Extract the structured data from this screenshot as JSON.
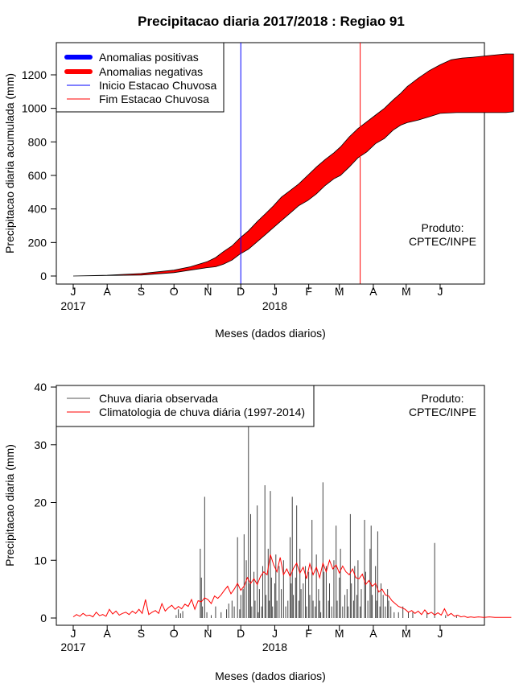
{
  "title": "Precipitacao diaria 2017/2018 : Regiao 91",
  "chart_data": [
    {
      "type": "area",
      "ylabel": "Precipitacao diaria acumulada (mm)",
      "xlabel": "Meses (dados diarios)",
      "ylim": [
        0,
        1350
      ],
      "yticks": [
        "0",
        "200",
        "400",
        "600",
        "800",
        "1000",
        "1200"
      ],
      "month_ticks": [
        "J",
        "A",
        "S",
        "O",
        "N",
        "D",
        "J",
        "F",
        "M",
        "A",
        "M",
        "J"
      ],
      "year_labels": [
        "2017",
        "2018"
      ],
      "annotation": [
        "Produto:",
        "CPTEC/INPE"
      ],
      "legend_position": "top-left",
      "legend": [
        {
          "label": "Anomalias positivas",
          "color": "#0000ff",
          "style": "thick"
        },
        {
          "label": "Anomalias negativas",
          "color": "#ff0000",
          "style": "thick"
        },
        {
          "label": "Inicio Estacao Chuvosa",
          "color": "#0000ff",
          "style": "thin"
        },
        {
          "label": "Fim Estacao Chuvosa",
          "color": "#ff0000",
          "style": "thin"
        }
      ],
      "observed_cumulative": [
        [
          0,
          0
        ],
        [
          31,
          3
        ],
        [
          62,
          6
        ],
        [
          92,
          20
        ],
        [
          107,
          35
        ],
        [
          122,
          50
        ],
        [
          130,
          55
        ],
        [
          137,
          70
        ],
        [
          145,
          95
        ],
        [
          152,
          130
        ],
        [
          160,
          160
        ],
        [
          168,
          205
        ],
        [
          176,
          250
        ],
        [
          183,
          290
        ],
        [
          190,
          330
        ],
        [
          198,
          375
        ],
        [
          206,
          420
        ],
        [
          214,
          450
        ],
        [
          222,
          490
        ],
        [
          230,
          540
        ],
        [
          238,
          580
        ],
        [
          244,
          600
        ],
        [
          252,
          650
        ],
        [
          260,
          705
        ],
        [
          268,
          740
        ],
        [
          276,
          790
        ],
        [
          284,
          820
        ],
        [
          292,
          870
        ],
        [
          299,
          900
        ],
        [
          305,
          915
        ],
        [
          315,
          930
        ],
        [
          325,
          950
        ],
        [
          335,
          970
        ],
        [
          350,
          975
        ],
        [
          365,
          975
        ],
        [
          395,
          975
        ],
        [
          402,
          980
        ]
      ],
      "climatology_cumulative": [
        [
          0,
          0
        ],
        [
          31,
          5
        ],
        [
          62,
          15
        ],
        [
          92,
          35
        ],
        [
          107,
          55
        ],
        [
          122,
          85
        ],
        [
          130,
          110
        ],
        [
          137,
          145
        ],
        [
          145,
          180
        ],
        [
          152,
          225
        ],
        [
          160,
          270
        ],
        [
          168,
          325
        ],
        [
          176,
          375
        ],
        [
          183,
          420
        ],
        [
          190,
          470
        ],
        [
          198,
          510
        ],
        [
          206,
          550
        ],
        [
          214,
          600
        ],
        [
          222,
          650
        ],
        [
          230,
          695
        ],
        [
          238,
          735
        ],
        [
          244,
          770
        ],
        [
          252,
          830
        ],
        [
          260,
          880
        ],
        [
          268,
          920
        ],
        [
          276,
          960
        ],
        [
          284,
          1000
        ],
        [
          292,
          1050
        ],
        [
          299,
          1090
        ],
        [
          305,
          1130
        ],
        [
          315,
          1180
        ],
        [
          325,
          1225
        ],
        [
          335,
          1260
        ],
        [
          345,
          1290
        ],
        [
          355,
          1300
        ],
        [
          365,
          1305
        ],
        [
          380,
          1315
        ],
        [
          395,
          1325
        ],
        [
          402,
          1325
        ]
      ],
      "rainy_season_start_day": 153,
      "rainy_season_end_day": 262
    },
    {
      "type": "bar",
      "ylabel": "Precipitacao diaria (mm)",
      "xlabel": "Meses (dados diarios)",
      "ylim": [
        0,
        40
      ],
      "yticks": [
        "0",
        "10",
        "20",
        "30",
        "40"
      ],
      "month_ticks": [
        "J",
        "A",
        "S",
        "O",
        "N",
        "D",
        "J",
        "F",
        "M",
        "A",
        "M",
        "J"
      ],
      "year_labels": [
        "2017",
        "2018"
      ],
      "annotation": [
        "Produto:",
        "CPTEC/INPE"
      ],
      "legend_position": "top-left",
      "legend": [
        {
          "label": "Chuva diaria observada",
          "color": "#555555",
          "style": "thin"
        },
        {
          "label": "Climatologia de chuva diária (1997-2014)",
          "color": "#ff0000",
          "style": "thin"
        }
      ],
      "observed_spikes": [
        [
          94,
          0.5
        ],
        [
          96,
          1.5
        ],
        [
          98,
          0.8
        ],
        [
          100,
          1.2
        ],
        [
          116,
          12
        ],
        [
          117,
          7
        ],
        [
          118,
          2
        ],
        [
          120,
          21
        ],
        [
          122,
          1
        ],
        [
          126,
          0.5
        ],
        [
          130,
          2
        ],
        [
          135,
          1
        ],
        [
          140,
          1.5
        ],
        [
          142,
          2.5
        ],
        [
          145,
          3
        ],
        [
          147,
          2
        ],
        [
          150,
          14
        ],
        [
          152,
          1.5
        ],
        [
          153,
          4
        ],
        [
          155,
          5
        ],
        [
          156,
          14.5
        ],
        [
          158,
          10
        ],
        [
          160,
          34
        ],
        [
          161,
          6
        ],
        [
          162,
          18
        ],
        [
          163,
          2
        ],
        [
          165,
          8
        ],
        [
          166,
          3
        ],
        [
          168,
          19.5
        ],
        [
          169,
          1
        ],
        [
          170,
          5
        ],
        [
          172,
          2
        ],
        [
          173,
          9
        ],
        [
          175,
          23
        ],
        [
          176,
          4
        ],
        [
          178,
          12
        ],
        [
          179,
          3
        ],
        [
          180,
          22
        ],
        [
          181,
          7
        ],
        [
          182,
          2
        ],
        [
          184,
          6
        ],
        [
          185,
          11
        ],
        [
          186,
          3
        ],
        [
          188,
          9
        ],
        [
          190,
          5
        ],
        [
          192,
          10
        ],
        [
          194,
          2
        ],
        [
          196,
          3
        ],
        [
          198,
          14
        ],
        [
          199,
          6
        ],
        [
          200,
          21
        ],
        [
          201,
          4
        ],
        [
          203,
          7
        ],
        [
          204,
          19.5
        ],
        [
          206,
          3
        ],
        [
          207,
          12
        ],
        [
          208,
          5
        ],
        [
          210,
          6
        ],
        [
          212,
          9
        ],
        [
          213,
          2
        ],
        [
          215,
          8
        ],
        [
          216,
          4
        ],
        [
          218,
          17
        ],
        [
          219,
          3
        ],
        [
          221,
          2
        ],
        [
          222,
          11
        ],
        [
          224,
          5
        ],
        [
          225,
          3
        ],
        [
          226,
          1
        ],
        [
          228,
          23.5
        ],
        [
          229,
          8
        ],
        [
          231,
          9
        ],
        [
          233,
          3
        ],
        [
          234,
          6
        ],
        [
          236,
          2
        ],
        [
          238,
          10
        ],
        [
          240,
          16
        ],
        [
          241,
          3
        ],
        [
          243,
          7
        ],
        [
          244,
          12
        ],
        [
          246,
          2
        ],
        [
          248,
          4
        ],
        [
          250,
          5
        ],
        [
          251,
          2
        ],
        [
          253,
          18
        ],
        [
          254,
          6
        ],
        [
          256,
          3
        ],
        [
          257,
          9
        ],
        [
          259,
          4
        ],
        [
          260,
          10
        ],
        [
          262,
          2
        ],
        [
          263,
          5
        ],
        [
          266,
          17
        ],
        [
          267,
          8
        ],
        [
          269,
          3
        ],
        [
          271,
          12
        ],
        [
          272,
          16
        ],
        [
          273,
          4
        ],
        [
          276,
          9
        ],
        [
          277,
          3
        ],
        [
          278,
          15
        ],
        [
          280,
          2
        ],
        [
          281,
          6
        ],
        [
          283,
          4
        ],
        [
          285,
          2
        ],
        [
          287,
          5
        ],
        [
          288,
          3
        ],
        [
          290,
          2
        ],
        [
          293,
          1
        ],
        [
          297,
          1
        ],
        [
          301,
          2
        ],
        [
          306,
          1
        ],
        [
          310,
          1
        ],
        [
          323,
          1
        ],
        [
          330,
          13
        ],
        [
          340,
          0.5
        ],
        [
          350,
          0.5
        ]
      ],
      "climatology_daily": [
        [
          0,
          0.2
        ],
        [
          3,
          0.6
        ],
        [
          6,
          0.3
        ],
        [
          9,
          0.8
        ],
        [
          12,
          0.4
        ],
        [
          15,
          0.5
        ],
        [
          18,
          0.2
        ],
        [
          21,
          1.0
        ],
        [
          24,
          0.4
        ],
        [
          27,
          0.6
        ],
        [
          30,
          0.3
        ],
        [
          33,
          1.5
        ],
        [
          36,
          0.7
        ],
        [
          39,
          1.2
        ],
        [
          42,
          0.5
        ],
        [
          45,
          0.8
        ],
        [
          48,
          1.0
        ],
        [
          51,
          0.6
        ],
        [
          54,
          1.2
        ],
        [
          57,
          0.8
        ],
        [
          60,
          1.5
        ],
        [
          63,
          0.8
        ],
        [
          66,
          3.2
        ],
        [
          69,
          0.6
        ],
        [
          72,
          1.0
        ],
        [
          75,
          1.3
        ],
        [
          78,
          0.8
        ],
        [
          81,
          2.5
        ],
        [
          84,
          1.2
        ],
        [
          87,
          1.8
        ],
        [
          90,
          2.2
        ],
        [
          93,
          1.5
        ],
        [
          96,
          2.0
        ],
        [
          99,
          1.6
        ],
        [
          102,
          2.4
        ],
        [
          105,
          2.0
        ],
        [
          108,
          3.2
        ],
        [
          111,
          1.5
        ],
        [
          114,
          3.0
        ],
        [
          117,
          2.8
        ],
        [
          120,
          3.5
        ],
        [
          123,
          3.2
        ],
        [
          126,
          2.5
        ],
        [
          129,
          3.8
        ],
        [
          132,
          3.4
        ],
        [
          135,
          4.0
        ],
        [
          138,
          4.8
        ],
        [
          141,
          5.5
        ],
        [
          144,
          4.2
        ],
        [
          147,
          5.0
        ],
        [
          150,
          6.0
        ],
        [
          153,
          4.8
        ],
        [
          156,
          5.5
        ],
        [
          159,
          7.0
        ],
        [
          162,
          6.0
        ],
        [
          165,
          6.8
        ],
        [
          168,
          5.8
        ],
        [
          171,
          7.2
        ],
        [
          174,
          8.0
        ],
        [
          177,
          7.5
        ],
        [
          180,
          11.0
        ],
        [
          183,
          9.2
        ],
        [
          186,
          8.0
        ],
        [
          189,
          10.5
        ],
        [
          192,
          7.5
        ],
        [
          195,
          8.5
        ],
        [
          198,
          7.2
        ],
        [
          201,
          8.6
        ],
        [
          204,
          9.5
        ],
        [
          207,
          7.8
        ],
        [
          210,
          8.8
        ],
        [
          213,
          6.8
        ],
        [
          216,
          9.4
        ],
        [
          219,
          7.5
        ],
        [
          222,
          8.8
        ],
        [
          225,
          7.0
        ],
        [
          228,
          9.5
        ],
        [
          231,
          8.0
        ],
        [
          234,
          10.0
        ],
        [
          237,
          8.5
        ],
        [
          240,
          9.2
        ],
        [
          243,
          7.8
        ],
        [
          246,
          9.0
        ],
        [
          249,
          8.0
        ],
        [
          252,
          7.5
        ],
        [
          255,
          8.5
        ],
        [
          258,
          7.0
        ],
        [
          261,
          6.8
        ],
        [
          264,
          7.6
        ],
        [
          267,
          5.8
        ],
        [
          270,
          6.5
        ],
        [
          273,
          5.5
        ],
        [
          276,
          6.0
        ],
        [
          279,
          4.5
        ],
        [
          282,
          5.0
        ],
        [
          285,
          4.0
        ],
        [
          288,
          3.8
        ],
        [
          291,
          3.0
        ],
        [
          294,
          2.5
        ],
        [
          297,
          2.0
        ],
        [
          300,
          1.8
        ],
        [
          303,
          1.5
        ],
        [
          306,
          1.0
        ],
        [
          309,
          1.3
        ],
        [
          312,
          0.8
        ],
        [
          315,
          1.2
        ],
        [
          318,
          0.6
        ],
        [
          321,
          1.4
        ],
        [
          324,
          0.7
        ],
        [
          327,
          1.0
        ],
        [
          330,
          0.5
        ],
        [
          333,
          0.9
        ],
        [
          336,
          0.5
        ],
        [
          339,
          1.6
        ],
        [
          342,
          0.4
        ],
        [
          345,
          0.8
        ],
        [
          348,
          0.3
        ],
        [
          351,
          0.5
        ],
        [
          354,
          0.2
        ],
        [
          357,
          0.3
        ],
        [
          360,
          0.1
        ],
        [
          363,
          0.2
        ],
        [
          366,
          0.1
        ],
        [
          370,
          0.2
        ],
        [
          375,
          0.1
        ],
        [
          380,
          0.2
        ],
        [
          385,
          0.1
        ],
        [
          390,
          0.1
        ],
        [
          395,
          0.1
        ],
        [
          400,
          0.1
        ]
      ]
    }
  ]
}
